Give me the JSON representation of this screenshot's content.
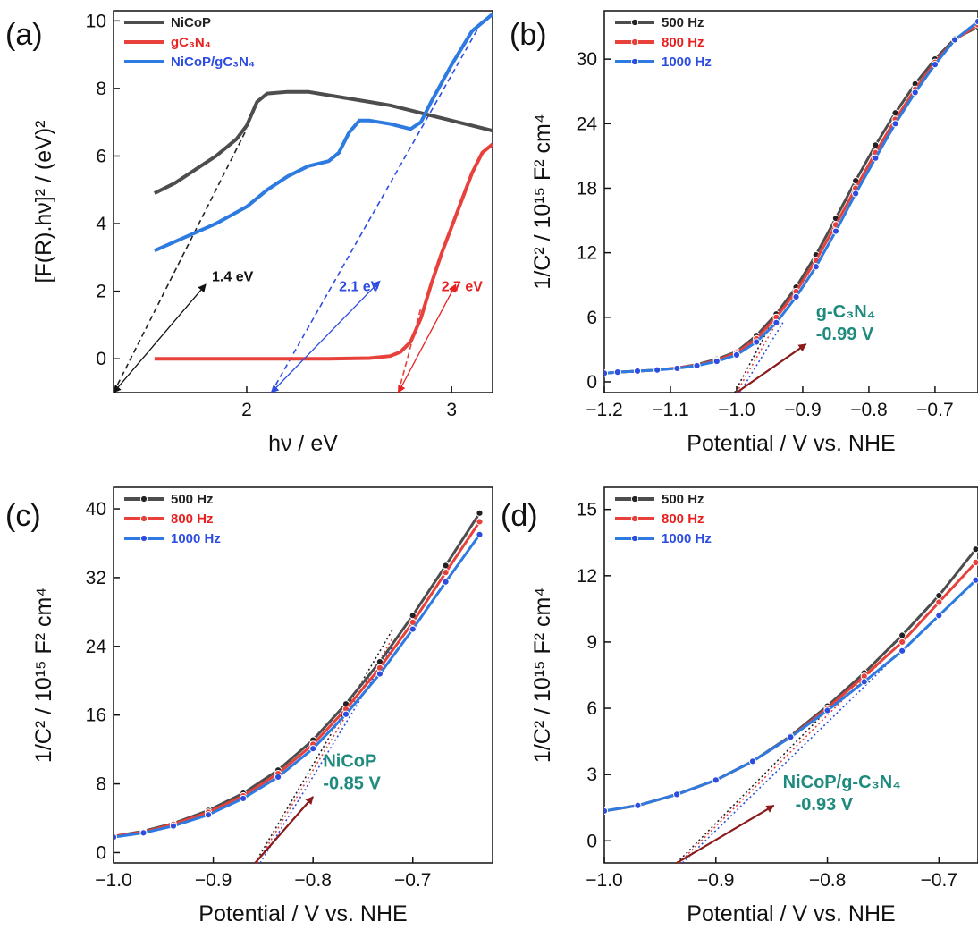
{
  "chart_data": [
    {
      "id": "a",
      "type": "line",
      "panel_label": "(a)",
      "xlabel": "hν / eV",
      "ylabel": "[F(R).hν]² / (eV)²",
      "xlim": [
        1.35,
        3.2
      ],
      "ylim": [
        -1,
        10.3
      ],
      "xticks": [
        2,
        3
      ],
      "yticks": [
        0,
        2,
        4,
        6,
        8,
        10
      ],
      "legend_position": "top-left",
      "series": [
        {
          "name": "NiCoP",
          "legend_label": "NiCoP",
          "color": "#4d4d4d",
          "x": [
            1.55,
            1.65,
            1.75,
            1.85,
            1.95,
            2.0,
            2.05,
            2.1,
            2.2,
            2.3,
            2.4,
            2.5,
            2.6,
            2.7,
            2.8,
            2.9,
            3.0,
            3.1,
            3.2
          ],
          "y": [
            4.9,
            5.2,
            5.6,
            6.0,
            6.5,
            6.9,
            7.6,
            7.85,
            7.9,
            7.9,
            7.8,
            7.7,
            7.6,
            7.5,
            7.35,
            7.2,
            7.05,
            6.9,
            6.75
          ]
        },
        {
          "name": "gC3N4",
          "legend_label": "gC₃N₄",
          "color": "#e8413c",
          "x": [
            1.55,
            1.8,
            2.0,
            2.2,
            2.4,
            2.6,
            2.7,
            2.75,
            2.8,
            2.85,
            2.9,
            2.95,
            3.0,
            3.05,
            3.1,
            3.15,
            3.2
          ],
          "y": [
            0,
            0,
            0,
            0,
            0,
            0.02,
            0.08,
            0.2,
            0.5,
            1.2,
            2.2,
            3.1,
            3.9,
            4.7,
            5.5,
            6.1,
            6.35
          ]
        },
        {
          "name": "NiCoP/gC3N4",
          "legend_label": "NiCoP/gC₃N₄",
          "color": "#2d7be0",
          "x": [
            1.55,
            1.7,
            1.85,
            2.0,
            2.1,
            2.2,
            2.3,
            2.4,
            2.45,
            2.5,
            2.55,
            2.6,
            2.7,
            2.8,
            2.85,
            2.9,
            3.0,
            3.1,
            3.2
          ],
          "y": [
            3.2,
            3.6,
            4.0,
            4.5,
            5.0,
            5.4,
            5.7,
            5.85,
            6.1,
            6.7,
            7.05,
            7.05,
            6.95,
            6.8,
            7.0,
            7.6,
            8.7,
            9.7,
            10.2
          ]
        }
      ],
      "tangents": [
        {
          "color": "#222222",
          "x": [
            1.35,
            2.0
          ],
          "y": [
            -1,
            6.8
          ]
        },
        {
          "color": "#2d4de0",
          "x": [
            2.12,
            3.15
          ],
          "y": [
            -1,
            10.0
          ]
        },
        {
          "color": "#e8413c",
          "x": [
            2.74,
            2.85
          ],
          "y": [
            -1,
            1.5
          ]
        }
      ],
      "annotations": [
        {
          "text": "1.4 eV",
          "color": "#111111",
          "arrow_from": [
            1.35,
            -1
          ],
          "arrow_to": [
            1.8,
            2.2
          ],
          "label_at": [
            1.83,
            2.3
          ]
        },
        {
          "text": "2.1 eV",
          "color": "#2d4de0",
          "arrow_from": [
            2.12,
            -1
          ],
          "arrow_to": [
            2.65,
            2.3
          ],
          "label_at": [
            2.45,
            2.0
          ]
        },
        {
          "text": "2.7 eV",
          "color": "#e82020",
          "arrow_from": [
            2.74,
            -1
          ],
          "arrow_to": [
            3.02,
            2.2
          ],
          "label_at": [
            2.95,
            2.0
          ]
        }
      ]
    },
    {
      "id": "b",
      "type": "line",
      "panel_label": "(b)",
      "xlabel": "Potential / V vs. NHE",
      "ylabel": "1/C² / 10¹⁵ F² cm⁴",
      "xlim": [
        -1.2,
        -0.635
      ],
      "ylim": [
        -1,
        34.5
      ],
      "xticks": [
        -1.2,
        -1.1,
        -1.0,
        -0.9,
        -0.8,
        -0.7
      ],
      "xtick_labels": [
        "−1.2",
        "−1.1",
        "−1.0",
        "−0.9",
        "−0.8",
        "−0.7"
      ],
      "yticks": [
        0,
        6,
        12,
        18,
        24,
        30
      ],
      "legend_position": "top-left",
      "series": [
        {
          "name": "500 Hz",
          "color": "#4d4d4d",
          "point_color": "#222222",
          "x": [
            -1.2,
            -1.18,
            -1.15,
            -1.12,
            -1.09,
            -1.06,
            -1.03,
            -1.0,
            -0.97,
            -0.94,
            -0.91,
            -0.88,
            -0.85,
            -0.82,
            -0.79,
            -0.76,
            -0.73,
            -0.7,
            -0.67,
            -0.635
          ],
          "y": [
            0.8,
            0.9,
            1.0,
            1.1,
            1.3,
            1.6,
            2.1,
            2.8,
            4.3,
            6.3,
            8.8,
            11.8,
            15.2,
            18.7,
            22.0,
            25.0,
            27.7,
            30.0,
            31.9,
            33.0
          ]
        },
        {
          "name": "800 Hz",
          "color": "#e8413c",
          "point_color": "#e8413c",
          "x": [
            -1.2,
            -1.18,
            -1.15,
            -1.12,
            -1.09,
            -1.06,
            -1.03,
            -1.0,
            -0.97,
            -0.94,
            -0.91,
            -0.88,
            -0.85,
            -0.82,
            -0.79,
            -0.76,
            -0.73,
            -0.7,
            -0.67,
            -0.635
          ],
          "y": [
            0.8,
            0.9,
            1.0,
            1.1,
            1.3,
            1.55,
            2.0,
            2.7,
            4.0,
            6.0,
            8.4,
            11.3,
            14.6,
            18.0,
            21.3,
            24.4,
            27.2,
            29.7,
            31.8,
            33.2
          ]
        },
        {
          "name": "1000 Hz",
          "color": "#2d7be0",
          "point_color": "#2d4de0",
          "x": [
            -1.2,
            -1.18,
            -1.15,
            -1.12,
            -1.09,
            -1.06,
            -1.03,
            -1.0,
            -0.97,
            -0.94,
            -0.91,
            -0.88,
            -0.85,
            -0.82,
            -0.79,
            -0.76,
            -0.73,
            -0.7,
            -0.67,
            -0.635
          ],
          "y": [
            0.8,
            0.9,
            1.0,
            1.1,
            1.25,
            1.5,
            1.9,
            2.5,
            3.7,
            5.5,
            7.9,
            10.7,
            14.0,
            17.5,
            20.8,
            24.0,
            26.9,
            29.5,
            31.8,
            33.5
          ]
        }
      ],
      "tangents": [
        {
          "color": "#222222",
          "x": [
            -1.003,
            -0.94
          ],
          "y": [
            -1,
            6.3
          ]
        },
        {
          "color": "#e8413c",
          "x": [
            -1.0,
            -0.935
          ],
          "y": [
            -1,
            6.0
          ]
        },
        {
          "color": "#2d4de0",
          "x": [
            -0.995,
            -0.93
          ],
          "y": [
            -1,
            5.5
          ]
        }
      ],
      "arrow": {
        "from": [
          -1.0,
          -1
        ],
        "to": [
          -0.895,
          3.5
        ],
        "color": "#8b1a1a"
      },
      "annotation_lines": [
        "g-C₃N₄",
        "-0.99 V"
      ],
      "annotation_at": [
        -0.88,
        6.0
      ]
    },
    {
      "id": "c",
      "type": "line",
      "panel_label": "(c)",
      "xlabel": "Potential / V vs. NHE",
      "ylabel": "1/C² / 10¹⁵ F² cm⁴",
      "xlim": [
        -1.0,
        -0.62
      ],
      "ylim": [
        -1.2,
        42.5
      ],
      "xticks": [
        -1.0,
        -0.9,
        -0.8,
        -0.7
      ],
      "xtick_labels": [
        "−1.0",
        "−0.9",
        "−0.8",
        "−0.7"
      ],
      "yticks": [
        0,
        8,
        16,
        24,
        32,
        40
      ],
      "legend_position": "top-left",
      "series": [
        {
          "name": "500 Hz",
          "color": "#4d4d4d",
          "point_color": "#222222",
          "x": [
            -1.0,
            -0.97,
            -0.94,
            -0.905,
            -0.87,
            -0.835,
            -0.8,
            -0.767,
            -0.733,
            -0.7,
            -0.667,
            -0.633
          ],
          "y": [
            1.9,
            2.5,
            3.4,
            4.9,
            6.9,
            9.6,
            13.1,
            17.3,
            22.2,
            27.6,
            33.4,
            39.5
          ]
        },
        {
          "name": "800 Hz",
          "color": "#e8413c",
          "point_color": "#e8413c",
          "x": [
            -1.0,
            -0.97,
            -0.94,
            -0.905,
            -0.87,
            -0.835,
            -0.8,
            -0.767,
            -0.733,
            -0.7,
            -0.667,
            -0.633
          ],
          "y": [
            1.9,
            2.4,
            3.3,
            4.7,
            6.6,
            9.2,
            12.6,
            16.7,
            21.5,
            26.8,
            32.6,
            38.5
          ]
        },
        {
          "name": "1000 Hz",
          "color": "#2d7be0",
          "point_color": "#2d4de0",
          "x": [
            -1.0,
            -0.97,
            -0.94,
            -0.905,
            -0.87,
            -0.835,
            -0.8,
            -0.767,
            -0.733,
            -0.7,
            -0.667,
            -0.633
          ],
          "y": [
            1.8,
            2.3,
            3.1,
            4.4,
            6.3,
            8.8,
            12.1,
            16.1,
            20.8,
            26.0,
            31.5,
            37.0
          ]
        }
      ],
      "tangents": [
        {
          "color": "#222222",
          "x": [
            -0.858,
            -0.72
          ],
          "y": [
            -1.2,
            26
          ]
        },
        {
          "color": "#e8413c",
          "x": [
            -0.856,
            -0.72
          ],
          "y": [
            -1.2,
            25
          ]
        },
        {
          "color": "#2d4de0",
          "x": [
            -0.853,
            -0.72
          ],
          "y": [
            -1.2,
            24
          ]
        }
      ],
      "arrow": {
        "from": [
          -0.858,
          -1.2
        ],
        "to": [
          -0.8,
          6.5
        ],
        "color": "#8b1a1a"
      },
      "annotation_lines": [
        "NiCoP",
        "-0.85 V"
      ],
      "annotation_at": [
        -0.79,
        10.0
      ]
    },
    {
      "id": "d",
      "type": "line",
      "panel_label": "(d)",
      "xlabel": "Potential / V vs. NHE",
      "ylabel": "1/C² / 10¹⁵ F² cm⁴",
      "xlim": [
        -1.0,
        -0.665
      ],
      "ylim": [
        -1.0,
        16.0
      ],
      "xticks": [
        -1.0,
        -0.9,
        -0.8,
        -0.7
      ],
      "xtick_labels": [
        "−1.0",
        "−0.9",
        "−0.8",
        "−0.7"
      ],
      "yticks": [
        0,
        3,
        6,
        9,
        12,
        15
      ],
      "legend_position": "top-left",
      "series": [
        {
          "name": "500 Hz",
          "color": "#4d4d4d",
          "point_color": "#222222",
          "x": [
            -1.0,
            -0.97,
            -0.935,
            -0.9,
            -0.867,
            -0.833,
            -0.8,
            -0.767,
            -0.733,
            -0.7,
            -0.667
          ],
          "y": [
            1.35,
            1.6,
            2.1,
            2.75,
            3.6,
            4.75,
            6.1,
            7.6,
            9.3,
            11.1,
            13.2
          ]
        },
        {
          "name": "800 Hz",
          "color": "#e8413c",
          "point_color": "#e8413c",
          "x": [
            -1.0,
            -0.97,
            -0.935,
            -0.9,
            -0.867,
            -0.833,
            -0.8,
            -0.767,
            -0.733,
            -0.7,
            -0.667
          ],
          "y": [
            1.35,
            1.6,
            2.1,
            2.75,
            3.6,
            4.7,
            6.0,
            7.45,
            9.0,
            10.8,
            12.6
          ]
        },
        {
          "name": "1000 Hz",
          "color": "#2d7be0",
          "point_color": "#2d4de0",
          "x": [
            -1.0,
            -0.97,
            -0.935,
            -0.9,
            -0.867,
            -0.833,
            -0.8,
            -0.767,
            -0.733,
            -0.7,
            -0.667
          ],
          "y": [
            1.35,
            1.6,
            2.1,
            2.75,
            3.6,
            4.7,
            5.9,
            7.2,
            8.6,
            10.2,
            11.8
          ]
        }
      ],
      "tangents": [
        {
          "color": "#222222",
          "x": [
            -0.935,
            -0.74
          ],
          "y": [
            -1.0,
            9.0
          ]
        },
        {
          "color": "#e8413c",
          "x": [
            -0.933,
            -0.74
          ],
          "y": [
            -1.0,
            8.7
          ]
        },
        {
          "color": "#2d4de0",
          "x": [
            -0.93,
            -0.74
          ],
          "y": [
            -1.0,
            8.3
          ]
        }
      ],
      "arrow": {
        "from": [
          -0.935,
          -1.0
        ],
        "to": [
          -0.848,
          1.6
        ],
        "color": "#8b1a1a"
      },
      "annotation_lines": [
        "NiCoP/g-C₃N₄",
        "-0.93 V"
      ],
      "annotation_at": [
        -0.84,
        2.4
      ]
    }
  ]
}
